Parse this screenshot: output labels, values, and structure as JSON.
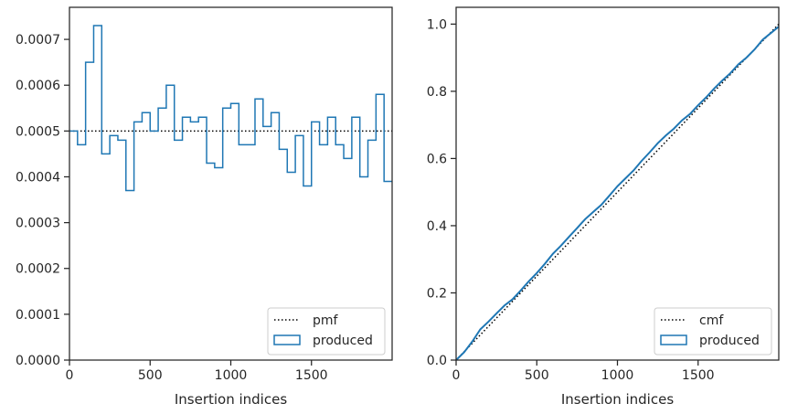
{
  "chart_data": [
    {
      "type": "histogram-step",
      "xlabel": "Insertion indices",
      "ylabel": "",
      "xlim": [
        0,
        2000
      ],
      "ylim": [
        0,
        0.00077
      ],
      "xticks": [
        0,
        500,
        1000,
        1500
      ],
      "xtick_labels": [
        "0",
        "500",
        "1000",
        "1500"
      ],
      "yticks": [
        0,
        0.0001,
        0.0002,
        0.0003,
        0.0004,
        0.0005,
        0.0006,
        0.0007
      ],
      "ytick_labels": [
        "0.0000",
        "0.0001",
        "0.0002",
        "0.0003",
        "0.0004",
        "0.0005",
        "0.0006",
        "0.0007"
      ],
      "bin_edges": [
        0,
        50,
        100,
        150,
        200,
        250,
        300,
        350,
        400,
        450,
        500,
        550,
        600,
        650,
        700,
        750,
        800,
        850,
        900,
        950,
        1000,
        1050,
        1100,
        1150,
        1200,
        1250,
        1300,
        1350,
        1400,
        1450,
        1500,
        1550,
        1600,
        1650,
        1700,
        1750,
        1800,
        1850,
        1900,
        1950,
        2000
      ],
      "series": [
        {
          "name": "pmf",
          "style": "dotted",
          "color": "#000000",
          "value": 0.0005
        },
        {
          "name": "produced",
          "style": "step",
          "color": "#1f77b4",
          "values": [
            0.0005,
            0.00047,
            0.00065,
            0.00073,
            0.00045,
            0.00049,
            0.00048,
            0.00037,
            0.00052,
            0.00054,
            0.0005,
            0.00055,
            0.0006,
            0.00048,
            0.00053,
            0.00052,
            0.00053,
            0.00043,
            0.00042,
            0.00055,
            0.00056,
            0.00047,
            0.00047,
            0.00057,
            0.00051,
            0.00054,
            0.00046,
            0.00041,
            0.00049,
            0.00038,
            0.00052,
            0.00047,
            0.00053,
            0.00047,
            0.00044,
            0.00053,
            0.0004,
            0.00048,
            0.00058,
            0.00039
          ]
        }
      ],
      "legend": {
        "location": "lower-right",
        "entries": [
          "pmf",
          "produced"
        ]
      },
      "grid": false
    },
    {
      "type": "line",
      "xlabel": "Insertion indices",
      "ylabel": "",
      "xlim": [
        0,
        2000
      ],
      "ylim": [
        0,
        1.05
      ],
      "xticks": [
        0,
        500,
        1000,
        1500
      ],
      "xtick_labels": [
        "0",
        "500",
        "1000",
        "1500"
      ],
      "yticks": [
        0,
        0.2,
        0.4,
        0.6,
        0.8,
        1.0
      ],
      "ytick_labels": [
        "0.0",
        "0.2",
        "0.4",
        "0.6",
        "0.8",
        "1.0"
      ],
      "series": [
        {
          "name": "cmf",
          "style": "dotted",
          "color": "#000000",
          "x": [
            0,
            2000
          ],
          "y": [
            0,
            1.0
          ]
        },
        {
          "name": "produced",
          "style": "line",
          "color": "#1f77b4",
          "x": [
            0,
            50,
            100,
            150,
            200,
            250,
            300,
            350,
            400,
            450,
            500,
            550,
            600,
            650,
            700,
            750,
            800,
            850,
            900,
            950,
            1000,
            1050,
            1100,
            1150,
            1200,
            1250,
            1300,
            1350,
            1400,
            1450,
            1500,
            1550,
            1600,
            1650,
            1700,
            1750,
            1800,
            1850,
            1900,
            1950,
            2000
          ],
          "y": [
            0,
            0.0235,
            0.055,
            0.0915,
            0.114,
            0.1385,
            0.1625,
            0.181,
            0.207,
            0.234,
            0.259,
            0.2865,
            0.3165,
            0.3405,
            0.367,
            0.393,
            0.4195,
            0.441,
            0.462,
            0.4895,
            0.5175,
            0.541,
            0.5645,
            0.593,
            0.6185,
            0.6455,
            0.6685,
            0.689,
            0.7135,
            0.7325,
            0.7585,
            0.782,
            0.8085,
            0.832,
            0.854,
            0.8805,
            0.9005,
            0.9245,
            0.9535,
            0.973,
            0.9925
          ]
        }
      ],
      "legend": {
        "location": "lower-right",
        "entries": [
          "cmf",
          "produced"
        ]
      },
      "grid": false
    }
  ]
}
